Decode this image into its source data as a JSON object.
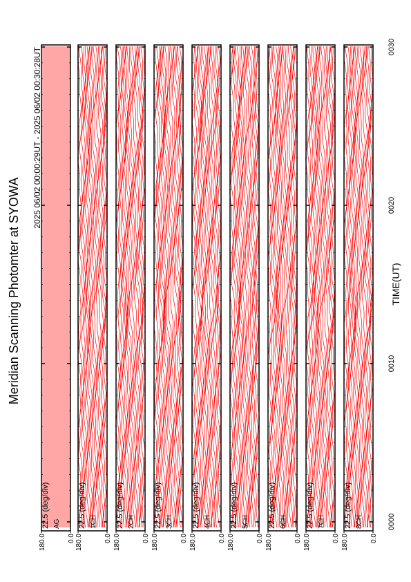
{
  "chart_data": {
    "type": "line",
    "title": "Meridian Scanning Photomter at SYOWA",
    "subtitle": "2025 06/02 00:00:29UT - 2025 06/02 00:30:28UT",
    "x_label": "TIME(UT)",
    "xlim": [
      0,
      30
    ],
    "xticks": [
      {
        "value": 0,
        "label": "0000"
      },
      {
        "value": 10,
        "label": "0010"
      },
      {
        "value": 20,
        "label": "0020"
      },
      {
        "value": 30,
        "label": "0030"
      }
    ],
    "color": "#ff0000",
    "panels": [
      {
        "name": "AG",
        "scale_label": "22.5 (deg/div)",
        "ylim": [
          0,
          180
        ],
        "yticks": [
          {
            "value": 180,
            "label": "180.0"
          },
          {
            "value": 0,
            "label": "0.0"
          }
        ]
      },
      {
        "name": "1CH",
        "scale_label": "22.5 (deg/div)",
        "ylim": [
          0,
          180
        ],
        "yticks": [
          {
            "value": 180,
            "label": "180.0"
          },
          {
            "value": 0,
            "label": "0.0"
          }
        ]
      },
      {
        "name": "2CH",
        "scale_label": "22.5 (deg/div)",
        "ylim": [
          0,
          180
        ],
        "yticks": [
          {
            "value": 180,
            "label": "180.0"
          },
          {
            "value": 0,
            "label": "0.0"
          }
        ]
      },
      {
        "name": "3CH",
        "scale_label": "22.5 (deg/div)",
        "ylim": [
          0,
          180
        ],
        "yticks": [
          {
            "value": 180,
            "label": "180.0"
          },
          {
            "value": 0,
            "label": "0.0"
          }
        ]
      },
      {
        "name": "4CH",
        "scale_label": "22.5 (deg/div)",
        "ylim": [
          0,
          180
        ],
        "yticks": [
          {
            "value": 180,
            "label": "180.0"
          },
          {
            "value": 0,
            "label": "0.0"
          }
        ]
      },
      {
        "name": "5CH",
        "scale_label": "22.5 (deg/div)",
        "ylim": [
          0,
          180
        ],
        "yticks": [
          {
            "value": 180,
            "label": "180.0"
          },
          {
            "value": 0,
            "label": "0.0"
          }
        ]
      },
      {
        "name": "6CH",
        "scale_label": "22.5 (deg/div)",
        "ylim": [
          0,
          180
        ],
        "yticks": [
          {
            "value": 180,
            "label": "180.0"
          },
          {
            "value": 0,
            "label": "0.0"
          }
        ]
      },
      {
        "name": "7CH",
        "scale_label": "22.5 (deg/div)",
        "ylim": [
          0,
          180
        ],
        "yticks": [
          {
            "value": 180,
            "label": "180.0"
          },
          {
            "value": 0,
            "label": "0.0"
          }
        ]
      },
      {
        "name": "8CH",
        "scale_label": "22.5 (deg/div)",
        "ylim": [
          0,
          180
        ],
        "yticks": [
          {
            "value": 180,
            "label": "180.0"
          },
          {
            "value": 0,
            "label": "0.0"
          }
        ]
      }
    ]
  }
}
